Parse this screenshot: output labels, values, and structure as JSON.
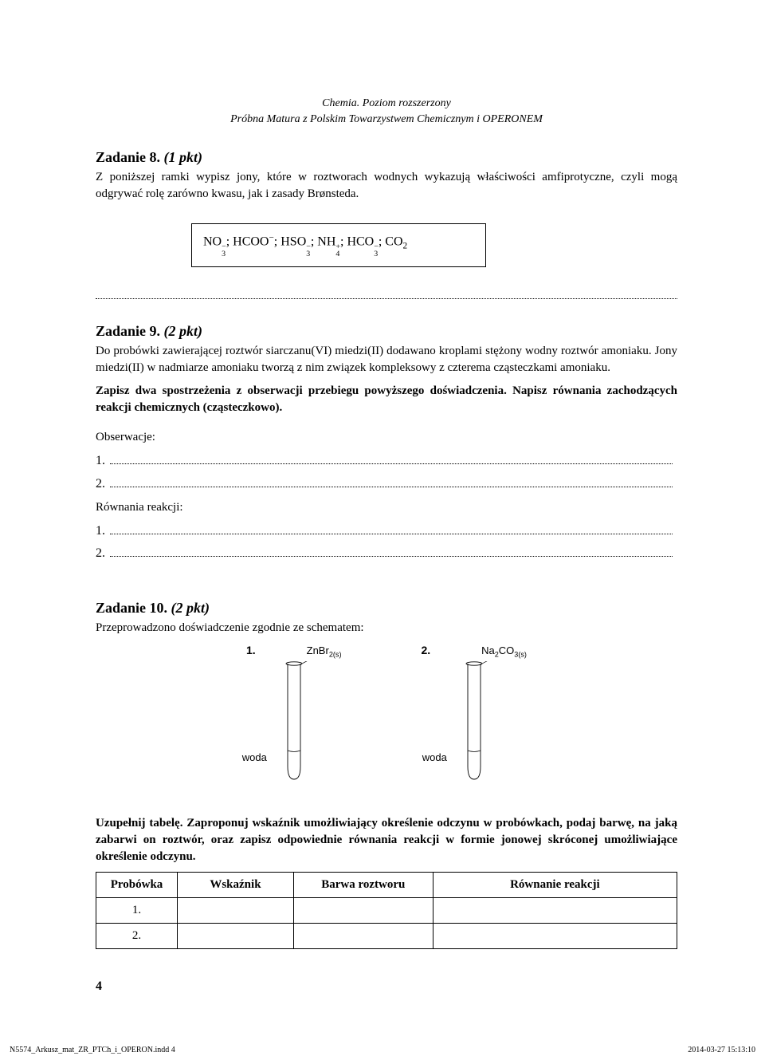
{
  "header": {
    "line1": "Chemia. Poziom rozszerzony",
    "line2": "Próbna Matura z Polskim Towarzystwem Chemicznym i OPERONEM"
  },
  "task8": {
    "title": "Zadanie 8.",
    "points": "(1 pkt)",
    "prompt": "Z poniższej ramki wypisz jony, które w roztworach wodnych wykazują właściwości amfiprotyczne, czyli mogą odgrywać rolę zarówno kwasu, jak i zasady Brønsteda."
  },
  "chembox": {
    "ions": [
      {
        "base": "NO",
        "sub": "3",
        "charge": "−"
      },
      {
        "base": "HCOO",
        "sub": "",
        "charge": "−"
      },
      {
        "base": "HSO",
        "sub": "3",
        "charge": "−"
      },
      {
        "base": "NH",
        "sub": "4",
        "charge": "+"
      },
      {
        "base": "HCO",
        "sub": "3",
        "charge": "−"
      },
      {
        "base": "CO",
        "sub": "2",
        "charge": ""
      }
    ]
  },
  "task9": {
    "title": "Zadanie 9.",
    "points": "(2 pkt)",
    "para1": "Do probówki zawierającej roztwór siarczanu(VI) miedzi(II) dodawano kroplami stężony wodny roztwór amoniaku. Jony miedzi(II) w nadmiarze amoniaku tworzą z nim związek kompleksowy z czterema cząsteczkami amoniaku.",
    "para2_bold": "Zapisz dwa spostrzeżenia z obserwacji przebiegu powyższego doświadczenia. Napisz równania zachodzących reakcji chemicznych (cząsteczkowo).",
    "obs_label": "Obserwacje:",
    "num1": "1.",
    "num2": "2.",
    "eq_label": "Równania reakcji:"
  },
  "task10": {
    "title": "Zadanie 10.",
    "points": "(2 pkt)",
    "intro": "Przeprowadzono doświadczenie zgodnie ze schematem:",
    "tube1": {
      "num": "1.",
      "compound": "ZnBr",
      "sub": "2(s)"
    },
    "tube2": {
      "num": "2.",
      "compound": "Na",
      "sub1": "2",
      "compound2": "CO",
      "sub2": "3(s)"
    },
    "woda": "woda",
    "instr_bold": "Uzupełnij tabelę. Zaproponuj wskaźnik umożliwiający określenie odczynu w probówkach, podaj barwę, na jaką zabarwi on roztwór, oraz zapisz odpowiednie równania reakcji w formie jonowej skróconej umożliwiające określenie odczynu.",
    "table": {
      "headers": [
        "Probówka",
        "Wskaźnik",
        "Barwa roztworu",
        "Równanie reakcji"
      ],
      "rows": [
        "1.",
        "2."
      ],
      "col_widths": [
        "14%",
        "20%",
        "24%",
        "42%"
      ]
    }
  },
  "pagenum": "4",
  "footer": {
    "left": "N5574_Arkusz_mat_ZR_PTCh_i_OPERON.indd   4",
    "right": "2014-03-27   15:13:10"
  },
  "tube_svg": {
    "stroke": "#000",
    "stroke_width": 0.7,
    "width": 50,
    "height": 150
  }
}
